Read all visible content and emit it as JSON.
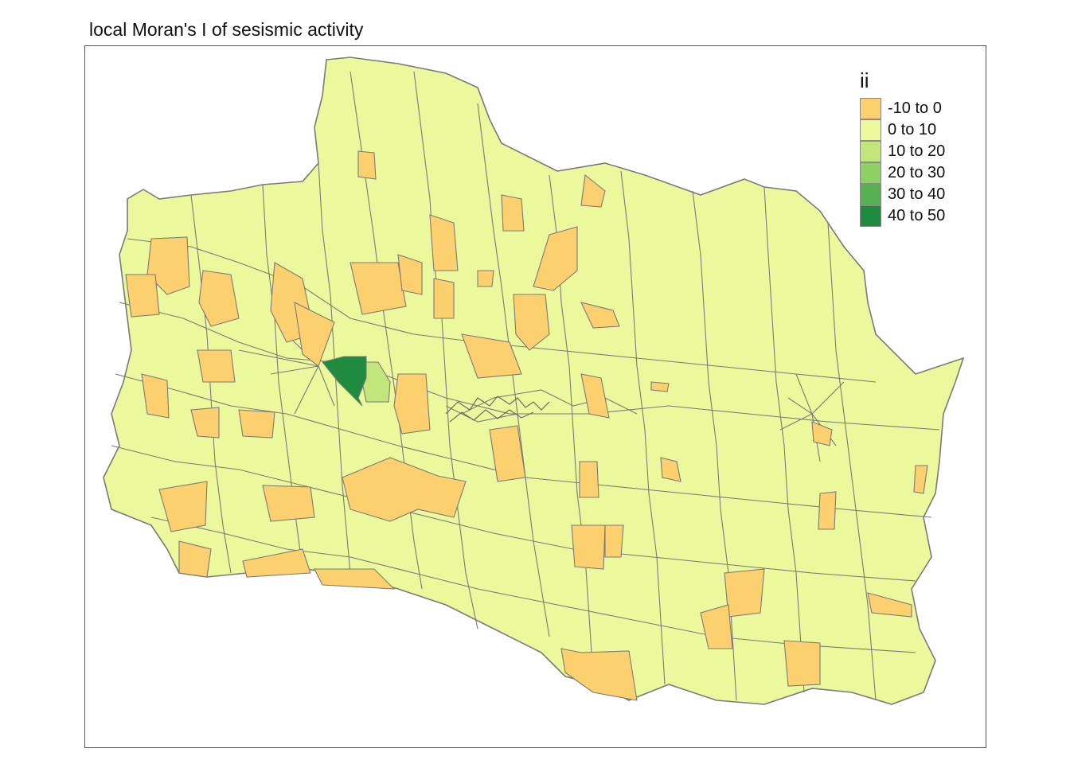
{
  "title": "local Moran's I of sesismic activity",
  "legend": {
    "title": "ii",
    "items": [
      {
        "label": "-10 to 0",
        "color": "#fdd06f"
      },
      {
        "label": "0 to 10",
        "color": "#ecf89c"
      },
      {
        "label": "10 to 20",
        "color": "#c2e67c"
      },
      {
        "label": "20 to 30",
        "color": "#8fd062"
      },
      {
        "label": "30 to 40",
        "color": "#56b152"
      },
      {
        "label": "40 to 50",
        "color": "#1e8b3f"
      }
    ]
  },
  "colors": {
    "background": "#ffffff",
    "frame": "#555555",
    "border": "#7a7a7a",
    "base_fill": "#ecf89c"
  }
}
